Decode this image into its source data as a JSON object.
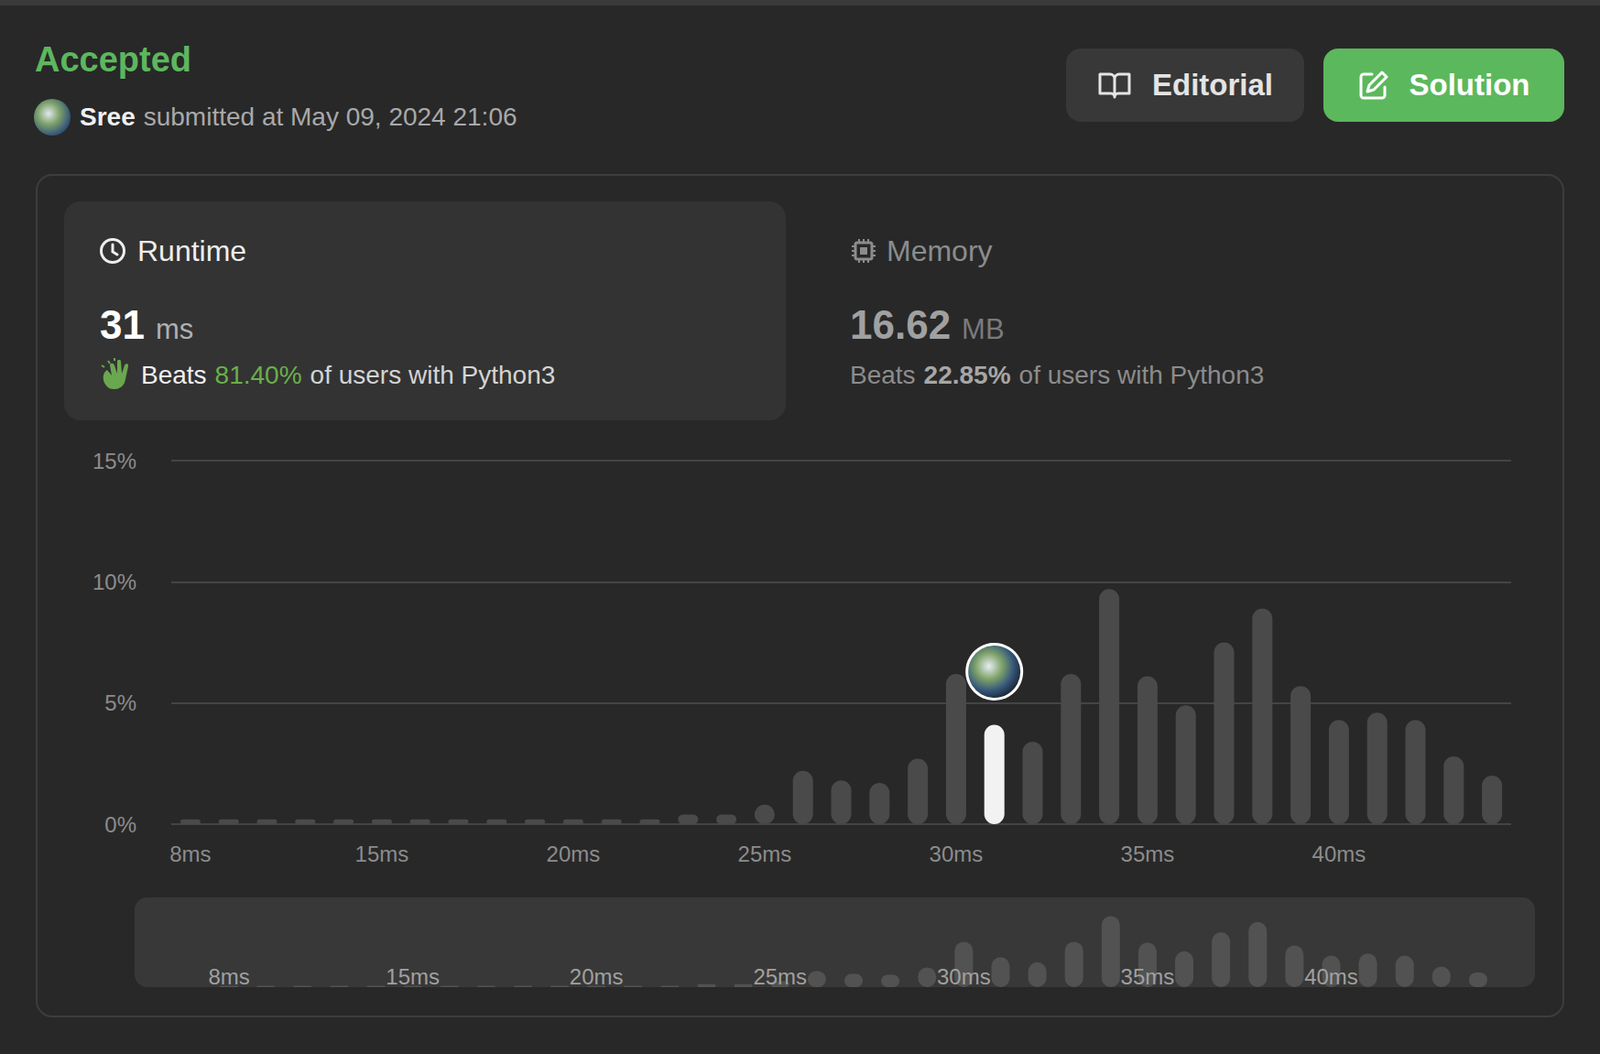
{
  "header": {
    "status": "Accepted",
    "user": "Sree",
    "submitted": "submitted at May 09, 2024 21:06",
    "buttons": [
      "Editorial",
      "Solution"
    ]
  },
  "runtime": {
    "title": "Runtime",
    "value": "31",
    "unit": "ms",
    "beats": "Beats",
    "percent": "81.40%",
    "suffix": "of users with Python3"
  },
  "memory": {
    "title": "Memory",
    "value": "16.62",
    "unit": "MB",
    "beats": "Beats",
    "percent": "22.85%",
    "suffix": "of users with Python3"
  },
  "chart_data": {
    "type": "bar",
    "categories": [
      "8ms",
      null,
      null,
      null,
      null,
      "15ms",
      null,
      null,
      null,
      null,
      "20ms",
      null,
      null,
      null,
      null,
      "25ms",
      null,
      null,
      null,
      null,
      "30ms",
      null,
      null,
      null,
      null,
      "35ms",
      null,
      null,
      null,
      null,
      "40ms",
      null,
      null,
      null,
      null
    ],
    "values": [
      0.2,
      0.2,
      0.2,
      0.2,
      0.2,
      0.2,
      0.2,
      0.2,
      0.2,
      0.2,
      0.2,
      0.2,
      0.2,
      0.4,
      0.4,
      0.8,
      2.2,
      1.8,
      1.7,
      2.7,
      6.2,
      4.1,
      3.4,
      6.2,
      9.7,
      6.1,
      4.9,
      7.5,
      8.9,
      5.7,
      4.3,
      4.6,
      4.3,
      2.8,
      2.0
    ],
    "colors": [
      "#4a4a4a",
      "#4a4a4a",
      "#4a4a4a",
      "#4a4a4a",
      "#4a4a4a",
      "#4a4a4a",
      "#4a4a4a",
      "#4a4a4a",
      "#4a4a4a",
      "#4a4a4a",
      "#4a4a4a",
      "#4a4a4a",
      "#4a4a4a",
      "#4a4a4a",
      "#4a4a4a",
      "#4a4a4a",
      "#4a4a4a",
      "#4a4a4a",
      "#4a4a4a",
      "#4a4a4a",
      "#4a4a4a",
      "#f2f2f2",
      "#4a4a4a",
      "#4a4a4a",
      "#4a4a4a",
      "#4a4a4a",
      "#4a4a4a",
      "#4a4a4a",
      "#4a4a4a",
      "#4a4a4a",
      "#4a4a4a",
      "#4a4a4a",
      "#4a4a4a",
      "#4a4a4a",
      "#4a4a4a"
    ],
    "ylim": [
      0,
      15
    ],
    "yticks": [
      {
        "value": 0,
        "label": "0%"
      },
      {
        "value": 5,
        "label": "5%"
      },
      {
        "value": 10,
        "label": "10%"
      },
      {
        "value": 15,
        "label": "15%"
      }
    ],
    "grid": true
  }
}
